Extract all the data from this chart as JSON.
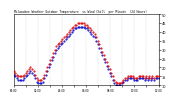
{
  "title": "Milwaukee Weather Outdoor Temperature vs Wind Chill per Minute (24 Hours)",
  "bg_color": "#ffffff",
  "plot_bg_color": "#ffffff",
  "grid_color": "#888888",
  "title_color": "#000000",
  "temp_color": "#dd0000",
  "wind_color": "#0000cc",
  "y_label_color": "#000000",
  "x_label_color": "#000000",
  "ylim": [
    10,
    50
  ],
  "yticks": [
    10,
    15,
    20,
    25,
    30,
    35,
    40,
    45,
    50
  ],
  "xlim": [
    0,
    1440
  ],
  "spine_color": "#000000",
  "temp_data": [
    18,
    17,
    16,
    15,
    15,
    15,
    15,
    16,
    17,
    18,
    19,
    20,
    19,
    18,
    16,
    14,
    13,
    13,
    13,
    14,
    16,
    18,
    20,
    22,
    24,
    26,
    28,
    30,
    32,
    33,
    34,
    35,
    36,
    37,
    38,
    39,
    40,
    41,
    42,
    43,
    44,
    44,
    45,
    45,
    45,
    45,
    45,
    44,
    44,
    43,
    42,
    41,
    40,
    39,
    37,
    35,
    33,
    31,
    29,
    27,
    25,
    23,
    21,
    19,
    17,
    15,
    13,
    12,
    11,
    11,
    11,
    12,
    13,
    14,
    14,
    15,
    15,
    15,
    15,
    14,
    14,
    14,
    15,
    15,
    15,
    15,
    14,
    15,
    14,
    15,
    14,
    15,
    14,
    15,
    15,
    15
  ],
  "wind_data": [
    16,
    15,
    14,
    13,
    13,
    13,
    13,
    14,
    15,
    16,
    17,
    18,
    17,
    16,
    14,
    12,
    11,
    11,
    11,
    12,
    14,
    16,
    18,
    20,
    22,
    24,
    26,
    28,
    30,
    31,
    32,
    33,
    34,
    35,
    36,
    37,
    38,
    39,
    40,
    41,
    42,
    42,
    43,
    43,
    43,
    43,
    43,
    42,
    42,
    41,
    40,
    39,
    38,
    37,
    35,
    33,
    31,
    29,
    27,
    25,
    23,
    21,
    19,
    17,
    15,
    13,
    11,
    10,
    10,
    10,
    10,
    11,
    12,
    13,
    13,
    14,
    14,
    14,
    14,
    13,
    13,
    13,
    14,
    14,
    14,
    14,
    13,
    14,
    13,
    14,
    13,
    14,
    13,
    14,
    14,
    14
  ],
  "x_tick_count": 13,
  "x_tick_labels": [
    "00:00",
    "",
    "02:00",
    "",
    "04:00",
    "",
    "06:00",
    "",
    "08:00",
    "",
    "10:00",
    "",
    "12:00",
    "",
    "14:00",
    "",
    "16:00",
    "",
    "18:00",
    "",
    "20:00",
    "",
    "22:00",
    "",
    "24:00"
  ]
}
